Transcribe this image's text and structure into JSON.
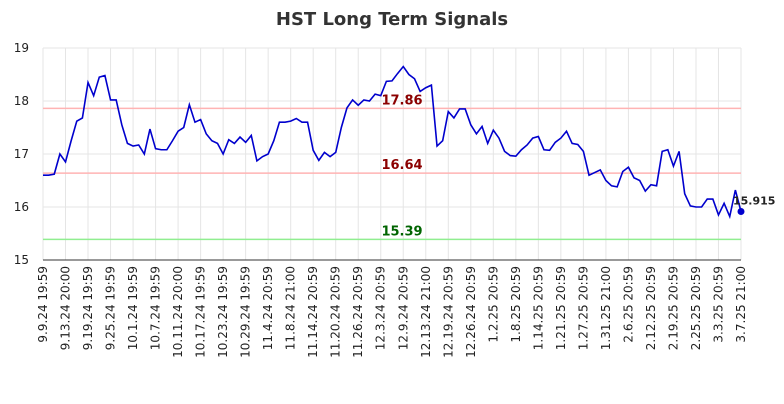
{
  "chart_data": {
    "type": "line",
    "title": "HST Long Term Signals",
    "categories": [
      "9.9.24 19:59",
      null,
      null,
      null,
      "9.13.24 20:00",
      null,
      null,
      null,
      "9.19.24 19:59",
      null,
      null,
      null,
      "9.25.24 19:59",
      null,
      null,
      null,
      "10.1.24 19:59",
      null,
      null,
      null,
      "10.7.24 19:59",
      null,
      null,
      null,
      "10.11.24 20:00",
      null,
      null,
      null,
      "10.17.24 19:59",
      null,
      null,
      null,
      "10.23.24 19:59",
      null,
      null,
      null,
      "10.29.24 19:59",
      null,
      null,
      null,
      "11.4.24 20:59",
      null,
      null,
      null,
      "11.8.24 21:00",
      null,
      null,
      null,
      "11.14.24 20:59",
      null,
      null,
      null,
      "11.20.24 20:59",
      null,
      null,
      null,
      "11.26.24 20:59",
      null,
      null,
      null,
      "12.3.24 20:59",
      null,
      null,
      null,
      "12.9.24 20:59",
      null,
      null,
      null,
      "12.13.24 21:00",
      null,
      null,
      null,
      "12.19.24 20:59",
      null,
      null,
      null,
      "12.26.24 20:59",
      null,
      null,
      null,
      "1.2.25 20:59",
      null,
      null,
      null,
      "1.8.25 20:59",
      null,
      null,
      null,
      "1.14.25 20:59",
      null,
      null,
      null,
      "1.21.25 20:59",
      null,
      null,
      null,
      "1.27.25 20:59",
      null,
      null,
      null,
      "1.31.25 21:00",
      null,
      null,
      null,
      "2.6.25 20:59",
      null,
      null,
      null,
      "2.12.25 20:59",
      null,
      null,
      null,
      "2.19.25 20:59",
      null,
      null,
      null,
      "2.25.25 20:59",
      null,
      null,
      null,
      "3.3.25 20:59",
      null,
      null,
      null,
      "3.7.25 21:00"
    ],
    "values": [
      16.6,
      16.6,
      16.62,
      17.0,
      16.85,
      17.25,
      17.62,
      17.68,
      18.35,
      18.1,
      18.45,
      18.48,
      18.02,
      18.02,
      17.55,
      17.2,
      17.15,
      17.17,
      17.0,
      17.47,
      17.1,
      17.08,
      17.08,
      17.25,
      17.43,
      17.5,
      17.93,
      17.6,
      17.65,
      17.38,
      17.25,
      17.2,
      17.0,
      17.27,
      17.2,
      17.32,
      17.22,
      17.35,
      16.87,
      16.95,
      17.0,
      17.25,
      17.6,
      17.6,
      17.62,
      17.67,
      17.6,
      17.6,
      17.07,
      16.88,
      17.03,
      16.95,
      17.03,
      17.5,
      17.87,
      18.02,
      17.92,
      18.02,
      18.0,
      18.13,
      18.1,
      18.37,
      18.38,
      18.52,
      18.65,
      18.5,
      18.42,
      18.18,
      18.25,
      18.3,
      17.15,
      17.25,
      17.8,
      17.68,
      17.85,
      17.85,
      17.55,
      17.38,
      17.52,
      17.2,
      17.45,
      17.3,
      17.05,
      16.97,
      16.96,
      17.08,
      17.17,
      17.3,
      17.33,
      17.08,
      17.07,
      17.22,
      17.3,
      17.43,
      17.2,
      17.18,
      17.05,
      16.6,
      16.65,
      16.7,
      16.5,
      16.4,
      16.38,
      16.67,
      16.75,
      16.55,
      16.5,
      16.3,
      16.42,
      16.4,
      17.05,
      17.08,
      16.77,
      17.05,
      16.25,
      16.02,
      16.0,
      16.0,
      16.15,
      16.15,
      15.85,
      16.07,
      15.82,
      16.32,
      15.915
    ],
    "color": "#0000cd",
    "levels": [
      {
        "value": 17.86,
        "color": "#ffb3b3",
        "text_color": "#8b0000"
      },
      {
        "value": 16.64,
        "color": "#ffb3b3",
        "text_color": "#8b0000"
      },
      {
        "value": 15.39,
        "color": "#90ee90",
        "text_color": "#006400"
      }
    ],
    "ylim": [
      15,
      19
    ],
    "yticks": [
      15,
      16,
      17,
      18,
      19
    ],
    "grid": true
  }
}
